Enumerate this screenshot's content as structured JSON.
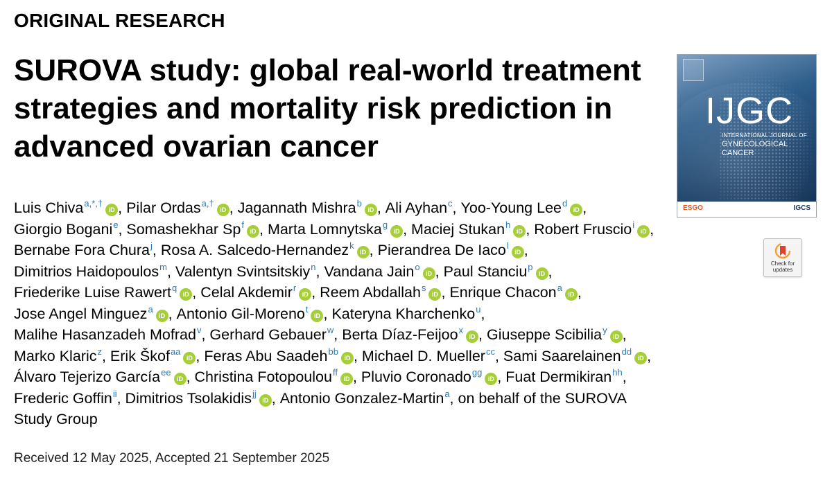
{
  "article": {
    "section": "ORIGINAL RESEARCH",
    "title": "SUROVA study: global real-world treatment strategies and mortality risk prediction in advanced ovarian cancer",
    "authors": [
      {
        "name": "Luis Chiva",
        "aff": "a,*,†",
        "orcid": true,
        "sep": ", "
      },
      {
        "name": "Pilar Ordas",
        "aff": "a,†",
        "orcid": true,
        "sep": ", "
      },
      {
        "name": "Jagannath Mishra",
        "aff": "b",
        "orcid": true,
        "sep": ", "
      },
      {
        "name": "Ali Ayhan",
        "aff": "c",
        "orcid": false,
        "sep": ", "
      },
      {
        "name": "Yoo-Young Lee",
        "aff": "d",
        "orcid": true,
        "sep": ", "
      },
      {
        "name": "Giorgio Bogani",
        "aff": "e",
        "orcid": false,
        "sep": ", "
      },
      {
        "name": "Somashekhar Sp",
        "aff": "f",
        "orcid": true,
        "sep": ", "
      },
      {
        "name": "Marta Lomnytska",
        "aff": "g",
        "orcid": true,
        "sep": ", "
      },
      {
        "name": "Maciej Stukan",
        "aff": "h",
        "orcid": true,
        "sep": ", "
      },
      {
        "name": "Robert Fruscio",
        "aff": "i",
        "orcid": true,
        "sep": ", "
      },
      {
        "name": "Bernabe Fora Chura",
        "aff": "j",
        "orcid": false,
        "sep": ", "
      },
      {
        "name": "Rosa A. Salcedo-Hernandez",
        "aff": "k",
        "orcid": true,
        "sep": ", "
      },
      {
        "name": "Pierandrea De Iaco",
        "aff": "l",
        "orcid": true,
        "sep": ", "
      },
      {
        "name": "Dimitrios Haidopoulos",
        "aff": "m",
        "orcid": false,
        "sep": ", "
      },
      {
        "name": "Valentyn Svintsitskiy",
        "aff": "n",
        "orcid": false,
        "sep": ", "
      },
      {
        "name": "Vandana Jain",
        "aff": "o",
        "orcid": true,
        "sep": ", "
      },
      {
        "name": "Paul Stanciu",
        "aff": "p",
        "orcid": true,
        "sep": ", "
      },
      {
        "name": "Friederike Luise Rawert",
        "aff": "q",
        "orcid": true,
        "sep": ", "
      },
      {
        "name": "Celal Akdemir",
        "aff": "r",
        "orcid": true,
        "sep": ", "
      },
      {
        "name": "Reem Abdallah",
        "aff": "s",
        "orcid": true,
        "sep": ", "
      },
      {
        "name": "Enrique Chacon",
        "aff": "a",
        "orcid": true,
        "sep": ", "
      },
      {
        "name": "Jose Angel Minguez",
        "aff": "a",
        "orcid": true,
        "sep": ", "
      },
      {
        "name": "Antonio Gil-Moreno",
        "aff": "t",
        "orcid": true,
        "sep": ", "
      },
      {
        "name": "Kateryna Kharchenko",
        "aff": "u",
        "orcid": false,
        "sep": ", "
      },
      {
        "name": "Malihe Hasanzadeh Mofrad",
        "aff": "v",
        "orcid": false,
        "sep": ", "
      },
      {
        "name": "Gerhard Gebauer",
        "aff": "w",
        "orcid": false,
        "sep": ", "
      },
      {
        "name": "Berta Díaz-Feijoo",
        "aff": "x",
        "orcid": true,
        "sep": ", "
      },
      {
        "name": "Giuseppe Scibilia",
        "aff": "y",
        "orcid": true,
        "sep": ", "
      },
      {
        "name": "Marko Klaric",
        "aff": "z",
        "orcid": false,
        "sep": ", "
      },
      {
        "name": "Erik Škof",
        "aff": "aa",
        "orcid": true,
        "sep": ", "
      },
      {
        "name": "Feras Abu Saadeh",
        "aff": "bb",
        "orcid": true,
        "sep": ", "
      },
      {
        "name": "Michael D. Mueller",
        "aff": "cc",
        "orcid": false,
        "sep": ", "
      },
      {
        "name": "Sami Saarelainen",
        "aff": "dd",
        "orcid": true,
        "sep": ", "
      },
      {
        "name": "Álvaro Tejerizo García",
        "aff": "ee",
        "orcid": true,
        "sep": ", "
      },
      {
        "name": "Christina Fotopoulou",
        "aff": "ff",
        "orcid": true,
        "sep": ", "
      },
      {
        "name": "Pluvio Coronado",
        "aff": "gg",
        "orcid": true,
        "sep": ", "
      },
      {
        "name": "Fuat Dermikiran",
        "aff": "hh",
        "orcid": false,
        "sep": ", "
      },
      {
        "name": "Frederic Goffin",
        "aff": "ii",
        "orcid": false,
        "sep": ", "
      },
      {
        "name": "Dimitrios Tsolakidis",
        "aff": "jj",
        "orcid": true,
        "sep": ", "
      },
      {
        "name": "Antonio Gonzalez-Martin",
        "aff": "a",
        "orcid": false,
        "sep": ", "
      }
    ],
    "group_text": "on behalf of the SUROVA Study Group",
    "orcid_label": "iD",
    "received": "Received 12 May 2025, Accepted 21 September 2025"
  },
  "journal_cover": {
    "logo": "IJGC",
    "subtitle_line1": "International Journal of",
    "subtitle_line2": "Gynecological",
    "subtitle_line3": "Cancer",
    "partner_left": "ESGO",
    "partner_right": "IGCS",
    "colors": {
      "background": "#143a63",
      "accent_left": "#e2571e",
      "accent_right": "#1d3a66"
    }
  },
  "updates_badge": {
    "line1": "Check for",
    "line2": "updates",
    "icon": "bookmark-refresh-icon"
  },
  "colors": {
    "affiliation": "#2b7bb9",
    "orcid": "#a6ce39"
  }
}
